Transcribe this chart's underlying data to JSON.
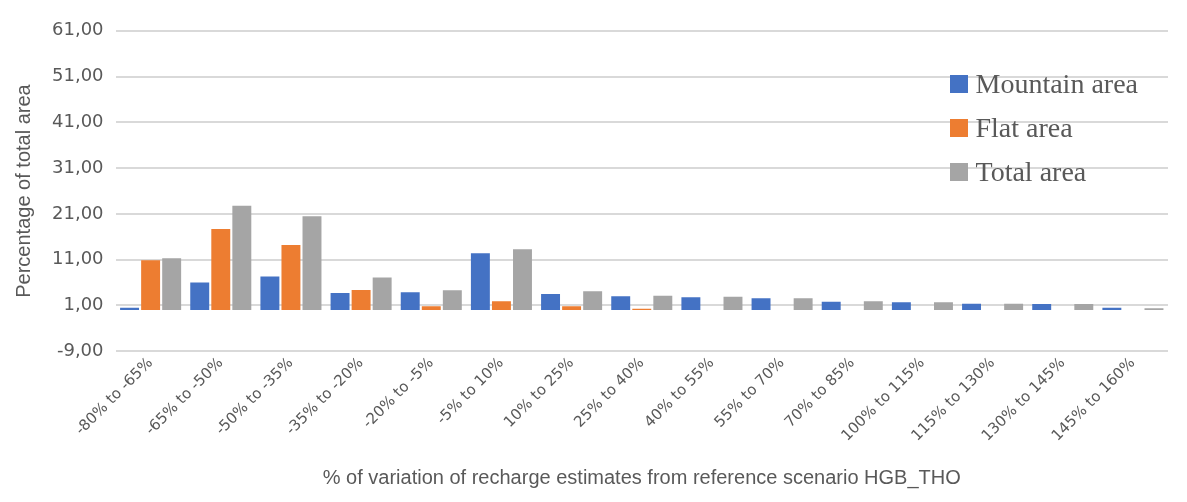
{
  "chart_data": {
    "type": "bar",
    "ylabel": "Percentage of total area",
    "xlabel": "% of variation of recharge estimates from reference scenario HGB_THO",
    "categories": [
      "-80% to -65%",
      "-65% to -50%",
      "-50% to -35%",
      "-35% to -20%",
      "-20% to -5%",
      "-5% to 10%",
      "10% to 25%",
      "25% to 40%",
      "40% to 55%",
      "55% to 70%",
      "70% to 85%",
      "100% to 115%",
      "115% to 130%",
      "130% to 145%",
      "145% to 160%"
    ],
    "series": [
      {
        "name": "Mountain area",
        "color": "#4472c4",
        "values": [
          0.5,
          6.0,
          7.3,
          3.7,
          3.9,
          12.4,
          3.5,
          3.0,
          2.8,
          2.6,
          1.8,
          1.7,
          1.4,
          1.3,
          0.5
        ]
      },
      {
        "name": "Flat area",
        "color": "#ed7d31",
        "values": [
          10.9,
          17.7,
          14.2,
          4.4,
          0.8,
          1.9,
          0.8,
          0.3,
          0,
          0,
          0,
          0,
          0,
          0,
          0
        ]
      },
      {
        "name": "Total area",
        "color": "#a5a5a5",
        "values": [
          11.3,
          22.8,
          20.5,
          7.1,
          4.3,
          13.3,
          4.1,
          3.1,
          2.9,
          2.6,
          1.9,
          1.7,
          1.4,
          1.3,
          0.4
        ]
      }
    ],
    "ylim": [
      -9,
      61
    ],
    "yticks": [
      {
        "value": -9,
        "label": "-9,00"
      },
      {
        "value": 1,
        "label": "1,00"
      },
      {
        "value": 11,
        "label": "11,00"
      },
      {
        "value": 21,
        "label": "21,00"
      },
      {
        "value": 31,
        "label": "31,00"
      },
      {
        "value": 41,
        "label": "41,00"
      },
      {
        "value": 51,
        "label": "51,00"
      },
      {
        "value": 61,
        "label": "61,00"
      }
    ],
    "grid": "y",
    "legend": "top right"
  }
}
